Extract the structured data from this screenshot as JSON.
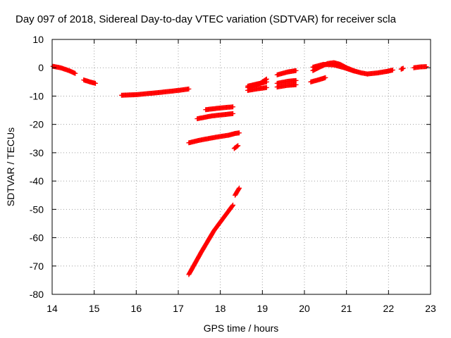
{
  "chart_data": {
    "type": "scatter",
    "title": "Day 097 of 2018, Sidereal Day-to-day VTEC variation (SDTVAR) for receiver scla",
    "xlabel": "GPS time / hours",
    "ylabel": "SDTVAR / TECUs",
    "xlim": [
      14,
      23
    ],
    "ylim": [
      -80,
      10
    ],
    "x_ticks": [
      "14",
      "15",
      "16",
      "17",
      "18",
      "19",
      "20",
      "21",
      "22",
      "23"
    ],
    "y_ticks": [
      "10",
      "0",
      "-10",
      "-20",
      "-30",
      "-40",
      "-50",
      "-60",
      "-70",
      "-80"
    ],
    "grid": true,
    "legend": "none",
    "marker": "+",
    "color": "#ff0000",
    "series": [
      {
        "segments": [
          {
            "x": [
              14.02,
              14.2,
              14.4,
              14.55
            ],
            "y": [
              0.5,
              0.0,
              -1.0,
              -2.0
            ]
          },
          {
            "x": [
              14.75,
              14.9,
              15.03
            ],
            "y": [
              -4.3,
              -5.0,
              -5.5
            ]
          },
          {
            "x": [
              15.65,
              16.0,
              16.5,
              17.0,
              17.25
            ],
            "y": [
              -9.7,
              -9.5,
              -8.8,
              -8.0,
              -7.5
            ]
          },
          {
            "x": [
              17.25,
              17.5,
              17.9,
              18.2,
              18.35,
              18.45
            ],
            "y": [
              -26.5,
              -25.6,
              -24.5,
              -23.8,
              -23.2,
              -23.0
            ]
          },
          {
            "x": [
              17.45,
              17.8,
              18.3
            ],
            "y": [
              -18.0,
              -17.0,
              -16.2
            ]
          },
          {
            "x": [
              17.65,
              18.0,
              18.3
            ],
            "y": [
              -14.8,
              -14.2,
              -13.8
            ]
          },
          {
            "x": [
              17.25,
              17.55,
              17.85,
              18.1,
              18.3
            ],
            "y": [
              -73.0,
              -65.0,
              -57.5,
              -52.5,
              -48.5
            ]
          },
          {
            "x": [
              18.33,
              18.42
            ],
            "y": [
              -28.5,
              -27.5
            ]
          },
          {
            "x": [
              18.35,
              18.45
            ],
            "y": [
              -45.0,
              -42.5
            ]
          },
          {
            "x": [
              18.65,
              18.85,
              19.1
            ],
            "y": [
              -6.5,
              -5.8,
              -5.0
            ]
          },
          {
            "x": [
              18.65,
              18.85,
              19.1
            ],
            "y": [
              -8.0,
              -7.5,
              -7.0
            ]
          },
          {
            "x": [
              18.65,
              18.95,
              19.1
            ],
            "y": [
              -7.0,
              -5.5,
              -4.0
            ]
          },
          {
            "x": [
              19.35,
              19.6,
              19.8
            ],
            "y": [
              -2.5,
              -1.5,
              -1.0
            ]
          },
          {
            "x": [
              19.35,
              19.6,
              19.8
            ],
            "y": [
              -5.5,
              -4.8,
              -4.5
            ]
          },
          {
            "x": [
              19.35,
              19.6,
              19.8
            ],
            "y": [
              -6.8,
              -6.2,
              -6.0
            ]
          },
          {
            "x": [
              20.15,
              20.35,
              20.5
            ],
            "y": [
              -5.0,
              -4.2,
              -3.5
            ]
          },
          {
            "x": [
              20.2,
              20.4,
              20.55,
              20.7,
              20.85,
              21.0,
              21.2
            ],
            "y": [
              -1.0,
              0.5,
              1.5,
              1.8,
              1.2,
              0.0,
              -1.2
            ]
          },
          {
            "x": [
              20.2,
              20.45,
              20.7,
              20.95,
              21.15,
              21.35,
              21.5
            ],
            "y": [
              0.2,
              1.2,
              1.0,
              0.0,
              -1.0,
              -1.8,
              -2.2
            ]
          },
          {
            "x": [
              21.5,
              21.75,
              21.95,
              22.1
            ],
            "y": [
              -2.2,
              -1.8,
              -1.3,
              -0.8
            ]
          },
          {
            "x": [
              22.3,
              22.35
            ],
            "y": [
              -0.5,
              -0.2
            ]
          },
          {
            "x": [
              22.6,
              22.75,
              22.9
            ],
            "y": [
              0.0,
              0.3,
              0.4
            ]
          }
        ]
      }
    ]
  }
}
